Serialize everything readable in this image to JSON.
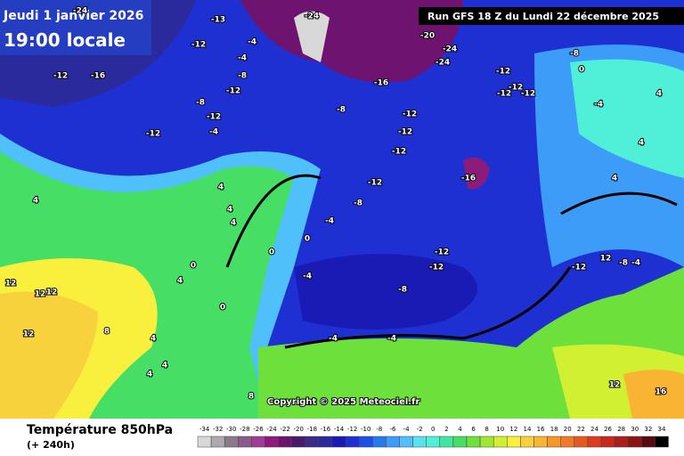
{
  "header": {
    "date": "Jeudi 1 janvier 2026",
    "time": "19:00 locale",
    "run": "Run GFS 18 Z du Lundi 22 décembre 2025"
  },
  "map": {
    "copyright": "Copyright © 2025 Meteociel.fr",
    "labels": [
      -24,
      -24,
      -13,
      -12,
      -4,
      -4,
      -8,
      -12,
      -16,
      -12,
      -8,
      -12,
      -4,
      -12,
      -16,
      -8,
      -12,
      -12,
      -12,
      -12,
      -16,
      -8,
      -4,
      0,
      0,
      -12,
      -12,
      -8,
      -4,
      4,
      4,
      4,
      4,
      0,
      4,
      0,
      12,
      12,
      12,
      12,
      8,
      4,
      4,
      4,
      8,
      -4,
      -4,
      -12,
      -12,
      -12,
      0,
      -4,
      4,
      4,
      4,
      -12,
      12,
      -8,
      -4,
      12,
      16,
      -24,
      -20,
      -24,
      -12,
      -8
    ]
  },
  "footer": {
    "title": "Température 850hPa",
    "subtitle": "(+ 240h)"
  },
  "legend": [
    {
      "value": -34,
      "color": "#d8d8d8"
    },
    {
      "value": -32,
      "color": "#b0a8b0"
    },
    {
      "value": -30,
      "color": "#8c7a8c"
    },
    {
      "value": -28,
      "color": "#8a5a8a"
    },
    {
      "value": -26,
      "color": "#a03c96"
    },
    {
      "value": -24,
      "color": "#8c1c7c"
    },
    {
      "value": -22,
      "color": "#6e1470"
    },
    {
      "value": -20,
      "color": "#4a1a6a"
    },
    {
      "value": -18,
      "color": "#3c2a8c"
    },
    {
      "value": -16,
      "color": "#2a2a9c"
    },
    {
      "value": -14,
      "color": "#1a1ab4"
    },
    {
      "value": -12,
      "color": "#1e30d2"
    },
    {
      "value": -10,
      "color": "#1e50e6"
    },
    {
      "value": -8,
      "color": "#2878f0"
    },
    {
      "value": -6,
      "color": "#3c9cf8"
    },
    {
      "value": -4,
      "color": "#50c0fa"
    },
    {
      "value": -2,
      "color": "#5ae0f0"
    },
    {
      "value": 0,
      "color": "#50f0d8"
    },
    {
      "value": 2,
      "color": "#40e6a0"
    },
    {
      "value": 4,
      "color": "#46de64"
    },
    {
      "value": 6,
      "color": "#6ee03c"
    },
    {
      "value": 8,
      "color": "#a0e632"
    },
    {
      "value": 10,
      "color": "#d2f032"
    },
    {
      "value": 12,
      "color": "#f8f03c"
    },
    {
      "value": 14,
      "color": "#f8d23c"
    },
    {
      "value": 16,
      "color": "#f8b432"
    },
    {
      "value": 18,
      "color": "#f89628"
    },
    {
      "value": 20,
      "color": "#f07828"
    },
    {
      "value": 22,
      "color": "#e65a1e"
    },
    {
      "value": 24,
      "color": "#dc3c1e"
    },
    {
      "value": 26,
      "color": "#c8281e"
    },
    {
      "value": 28,
      "color": "#aa1e1e"
    },
    {
      "value": 30,
      "color": "#8c1414"
    },
    {
      "value": 32,
      "color": "#5a0a0a"
    },
    {
      "value": 34,
      "color": "#000000"
    }
  ]
}
